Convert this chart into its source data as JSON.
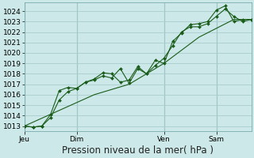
{
  "title": "Pression niveau de la mer( hPa )",
  "bg_color": "#cce8e8",
  "grid_color": "#aacccc",
  "line_color": "#1a5c1a",
  "marker_color": "#1a5c1a",
  "ylim": [
    1012.5,
    1024.8
  ],
  "yticks": [
    1013,
    1014,
    1015,
    1016,
    1017,
    1018,
    1019,
    1020,
    1021,
    1022,
    1023,
    1024
  ],
  "day_labels": [
    "Jeu",
    "Dim",
    "Ven",
    "Sam"
  ],
  "day_positions": [
    0,
    24,
    64,
    88
  ],
  "vline_positions": [
    0,
    24,
    64,
    88
  ],
  "xlim": [
    0,
    104
  ],
  "series1_x": [
    0,
    4,
    8,
    12,
    16,
    20,
    24,
    28,
    32,
    36,
    40,
    44,
    48,
    52,
    56,
    60,
    64,
    68,
    72,
    76,
    80,
    84,
    88,
    92,
    96,
    100,
    104
  ],
  "series1_y": [
    1013.0,
    1012.9,
    1013.0,
    1014.1,
    1016.4,
    1016.7,
    1016.6,
    1017.2,
    1017.5,
    1018.1,
    1018.0,
    1017.2,
    1017.4,
    1018.7,
    1018.0,
    1019.3,
    1019.0,
    1021.1,
    1021.9,
    1022.7,
    1022.8,
    1023.0,
    1024.1,
    1024.5,
    1023.0,
    1023.2,
    1023.2
  ],
  "series2_x": [
    0,
    4,
    8,
    12,
    16,
    20,
    24,
    28,
    32,
    36,
    40,
    44,
    48,
    52,
    56,
    60,
    64,
    68,
    72,
    76,
    80,
    84,
    88,
    92,
    96,
    100,
    104
  ],
  "series2_y": [
    1013.0,
    1012.9,
    1013.0,
    1013.8,
    1015.5,
    1016.3,
    1016.6,
    1017.2,
    1017.4,
    1017.8,
    1017.6,
    1018.5,
    1017.1,
    1018.5,
    1018.0,
    1018.8,
    1019.5,
    1020.7,
    1022.0,
    1022.5,
    1022.5,
    1022.8,
    1023.5,
    1024.2,
    1023.5,
    1023.0,
    1023.2
  ],
  "series3_x": [
    0,
    16,
    32,
    48,
    64,
    80,
    96,
    104
  ],
  "series3_y": [
    1013.0,
    1014.5,
    1016.0,
    1017.0,
    1019.0,
    1021.5,
    1023.2,
    1023.2
  ],
  "xlabel_fontsize": 8.5,
  "tick_fontsize": 6.5,
  "figsize": [
    3.2,
    2.0
  ],
  "dpi": 100
}
